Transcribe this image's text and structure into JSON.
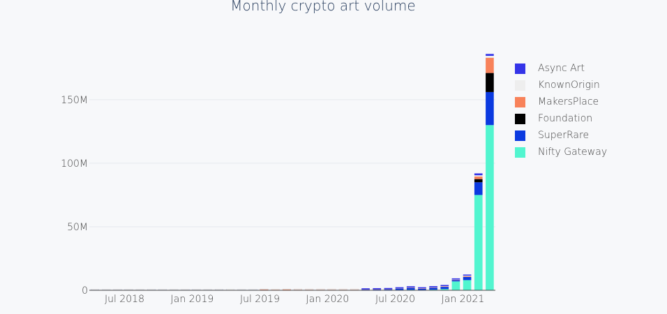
{
  "chart_data": {
    "type": "bar",
    "stacked": true,
    "title": "Monthly crypto art volume",
    "xlabel": "",
    "ylabel": "",
    "ylim": [
      0,
      190000000
    ],
    "y_ticks": [
      0,
      50000000,
      100000000,
      150000000
    ],
    "y_tick_labels": [
      "0",
      "50M",
      "100M",
      "150M"
    ],
    "x_ticks": [
      "2018-07",
      "2019-01",
      "2019-07",
      "2020-01",
      "2020-07",
      "2021-01"
    ],
    "x_tick_labels": [
      "Jul 2018",
      "Jan 2019",
      "Jul 2019",
      "Jan 2020",
      "Jul 2020",
      "Jan 2021"
    ],
    "grid": true,
    "legend_position": "top-right",
    "categories": [
      "2018-04",
      "2018-05",
      "2018-06",
      "2018-07",
      "2018-08",
      "2018-09",
      "2018-10",
      "2018-11",
      "2018-12",
      "2019-01",
      "2019-02",
      "2019-03",
      "2019-04",
      "2019-05",
      "2019-06",
      "2019-07",
      "2019-08",
      "2019-09",
      "2019-10",
      "2019-11",
      "2019-12",
      "2020-01",
      "2020-02",
      "2020-03",
      "2020-04",
      "2020-05",
      "2020-06",
      "2020-07",
      "2020-08",
      "2020-09",
      "2020-10",
      "2020-11",
      "2020-12",
      "2021-01",
      "2021-02",
      "2021-03"
    ],
    "series": [
      {
        "name": "Nifty Gateway",
        "color": "#52f5cf",
        "values": [
          0,
          0,
          0,
          0,
          0,
          0,
          0,
          0,
          0,
          0,
          0,
          0,
          0,
          0,
          0,
          0,
          0,
          0,
          0,
          0,
          0,
          0,
          0,
          0,
          200000,
          200000,
          300000,
          300000,
          400000,
          300000,
          500000,
          1000000,
          7000000,
          8000000,
          75000000,
          130000000
        ]
      },
      {
        "name": "SuperRare",
        "color": "#0b3ae0",
        "values": [
          300000,
          300000,
          300000,
          300000,
          300000,
          300000,
          300000,
          300000,
          300000,
          300000,
          300000,
          300000,
          250000,
          300000,
          300000,
          300000,
          200000,
          200000,
          300000,
          300000,
          300000,
          300000,
          300000,
          300000,
          300000,
          400000,
          400000,
          1000000,
          1500000,
          800000,
          1500000,
          1700000,
          1000000,
          2500000,
          10000000,
          26000000
        ]
      },
      {
        "name": "Foundation",
        "color": "#000000",
        "values": [
          0,
          0,
          0,
          0,
          0,
          0,
          0,
          0,
          0,
          0,
          0,
          0,
          0,
          0,
          0,
          0,
          0,
          0,
          0,
          0,
          0,
          0,
          0,
          0,
          0,
          0,
          0,
          0,
          0,
          0,
          0,
          0,
          0,
          0,
          2500000,
          15000000
        ]
      },
      {
        "name": "MakersPlace",
        "color": "#f8825a",
        "values": [
          0,
          0,
          0,
          0,
          0,
          0,
          0,
          0,
          0,
          0,
          0,
          0,
          0,
          0,
          0,
          300000,
          200000,
          400000,
          100000,
          100000,
          100000,
          100000,
          100000,
          100000,
          100000,
          100000,
          100000,
          100000,
          200000,
          200000,
          200000,
          300000,
          200000,
          500000,
          2000000,
          12000000
        ]
      },
      {
        "name": "KnownOrigin",
        "color": "#eeeeee",
        "values": [
          50000,
          50000,
          50000,
          50000,
          50000,
          50000,
          50000,
          50000,
          50000,
          50000,
          50000,
          50000,
          50000,
          50000,
          50000,
          50000,
          50000,
          50000,
          50000,
          50000,
          50000,
          50000,
          50000,
          50000,
          100000,
          100000,
          100000,
          100000,
          200000,
          200000,
          200000,
          300000,
          300000,
          500000,
          1000000,
          1500000
        ]
      },
      {
        "name": "Async Art",
        "color": "#3434e8",
        "values": [
          0,
          0,
          0,
          0,
          0,
          0,
          0,
          0,
          0,
          0,
          0,
          0,
          0,
          0,
          0,
          0,
          0,
          0,
          0,
          0,
          0,
          0,
          0,
          0,
          100000,
          100000,
          200000,
          300000,
          300000,
          500000,
          400000,
          500000,
          700000,
          700000,
          1500000,
          1500000
        ]
      }
    ],
    "series_present": [
      [
        1,
        1,
        1,
        1,
        1,
        1,
        1,
        1,
        1,
        1,
        1,
        1,
        0,
        1,
        1,
        1,
        0,
        1,
        1,
        1,
        1,
        1,
        1,
        1,
        1,
        1,
        1,
        1,
        1,
        1,
        1,
        1,
        1,
        1,
        1,
        1
      ]
    ]
  }
}
